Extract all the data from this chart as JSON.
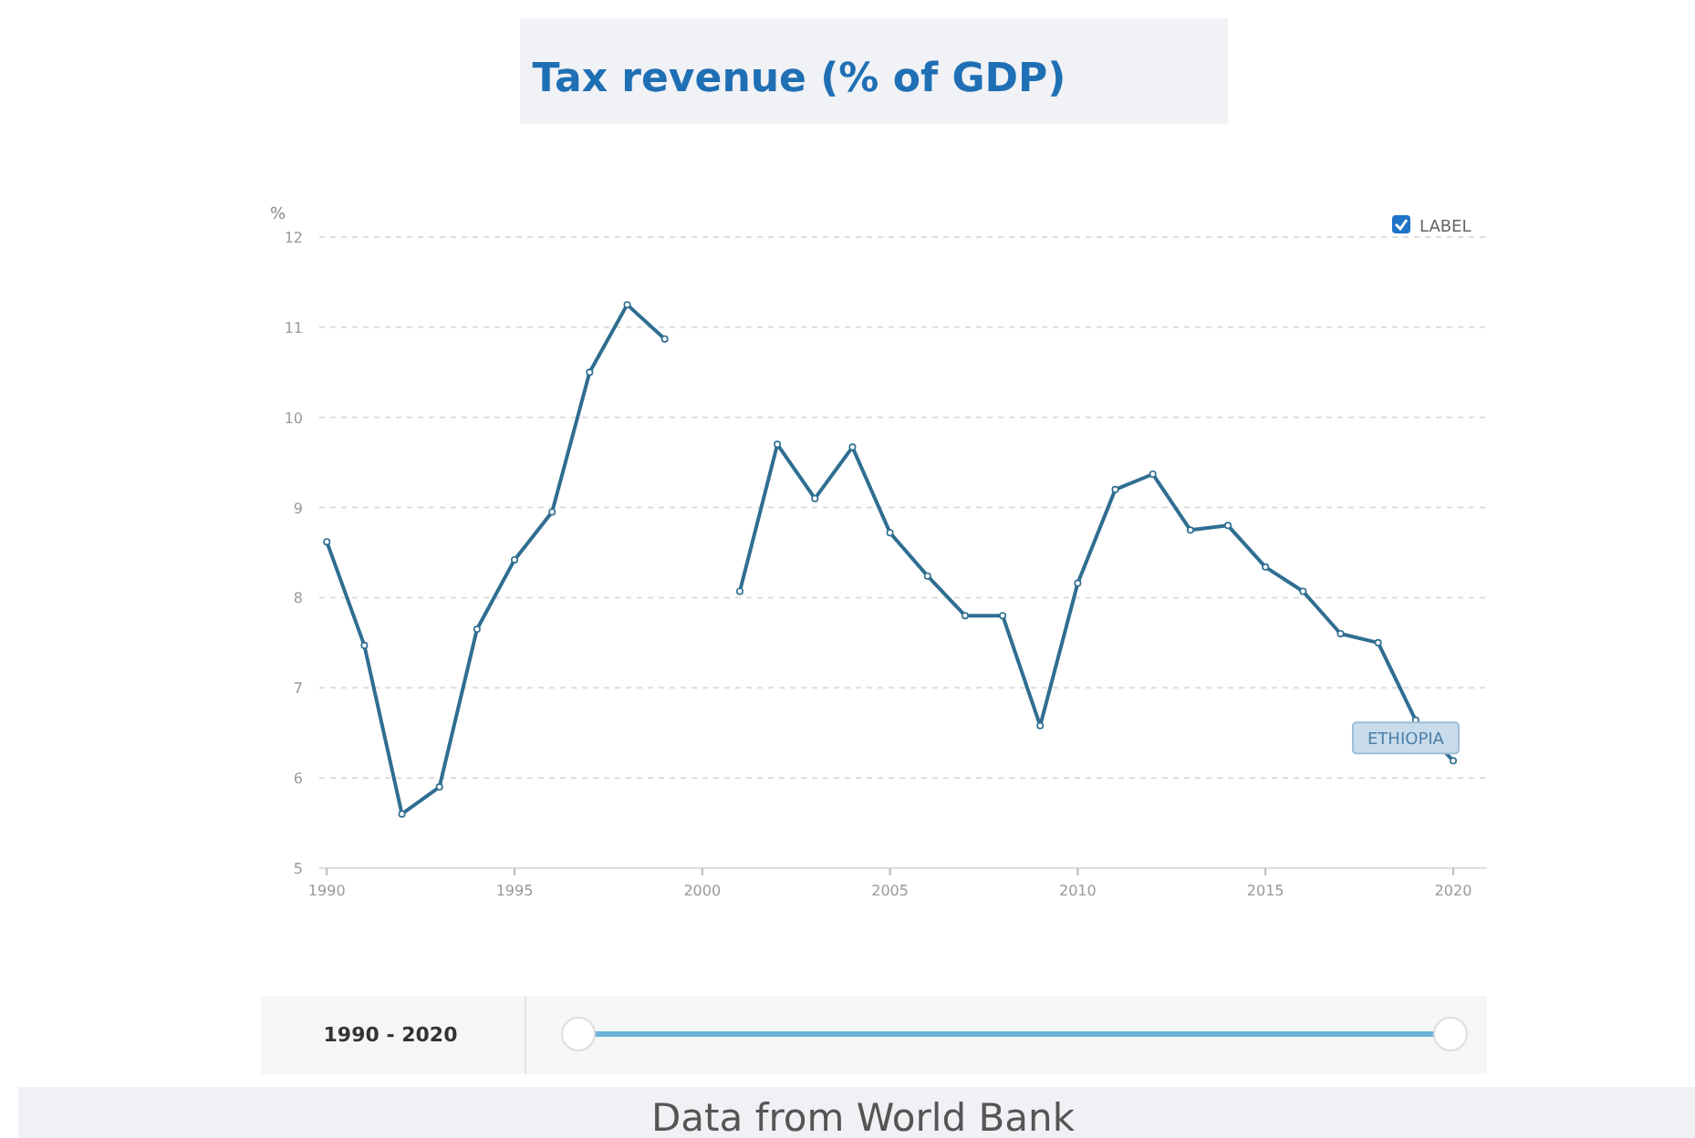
{
  "chart_data": {
    "type": "line",
    "title": "Tax revenue (% of GDP)",
    "ylabel": "%",
    "x": [
      1990,
      1991,
      1992,
      1993,
      1994,
      1995,
      1996,
      1997,
      1998,
      1999,
      2000,
      2001,
      2002,
      2003,
      2004,
      2005,
      2006,
      2007,
      2008,
      2009,
      2010,
      2011,
      2012,
      2013,
      2014,
      2015,
      2016,
      2017,
      2018,
      2019,
      2020
    ],
    "series": [
      {
        "name": "ETHIOPIA",
        "color": "#2f6e91",
        "values": [
          8.62,
          7.47,
          5.6,
          5.9,
          7.65,
          8.42,
          8.95,
          10.5,
          11.25,
          10.87,
          null,
          8.07,
          9.7,
          9.1,
          9.67,
          8.72,
          8.24,
          7.8,
          7.8,
          6.58,
          8.16,
          9.2,
          9.37,
          8.75,
          8.8,
          8.34,
          8.07,
          7.6,
          7.5,
          6.64,
          6.19
        ]
      }
    ],
    "xlim": [
      1989.8,
      2020.9
    ],
    "xticks": [
      1990,
      1995,
      2000,
      2005,
      2010,
      2015,
      2020
    ],
    "ylim": [
      5,
      12
    ],
    "yticks": [
      5,
      6,
      7,
      8,
      9,
      10,
      11,
      12
    ],
    "grid": "y",
    "marker": "circle",
    "line_style": "solid",
    "annotations": [
      "LABEL",
      "1990 - 2020",
      "Data from World Bank"
    ]
  }
}
